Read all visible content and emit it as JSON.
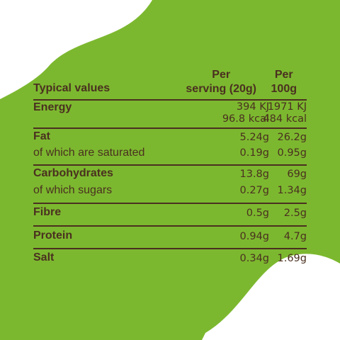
{
  "colors": {
    "accent_green": "#7cb82f",
    "text_brown": "#4a3020",
    "background": "#ffffff"
  },
  "table": {
    "header": {
      "label": "Typical values",
      "col1_line1": "Per",
      "col1_line2": "serving (20g)",
      "col2_line1": "Per",
      "col2_line2": "100g"
    },
    "rows": [
      {
        "name": "Energy",
        "per_serving": "394 KJ",
        "per_100g": "1971 KJ"
      },
      {
        "name": "",
        "per_serving": "96.8 kcal",
        "per_100g": "484 kcal"
      },
      {
        "name": "Fat",
        "per_serving": "5.24g",
        "per_100g": "26.2g"
      },
      {
        "name": "of which are saturated",
        "per_serving": "0.19g",
        "per_100g": "0.95g"
      },
      {
        "name": "Carbohydrates",
        "per_serving": "13.8g",
        "per_100g": "69g"
      },
      {
        "name": "of which sugars",
        "per_serving": "0.27g",
        "per_100g": "1.34g"
      },
      {
        "name": "Fibre",
        "per_serving": "0.5g",
        "per_100g": "2.5g"
      },
      {
        "name": "Protein",
        "per_serving": "0.94g",
        "per_100g": "4.7g"
      },
      {
        "name": "Salt",
        "per_serving": "0.34g",
        "per_100g": "1.69g"
      }
    ]
  }
}
